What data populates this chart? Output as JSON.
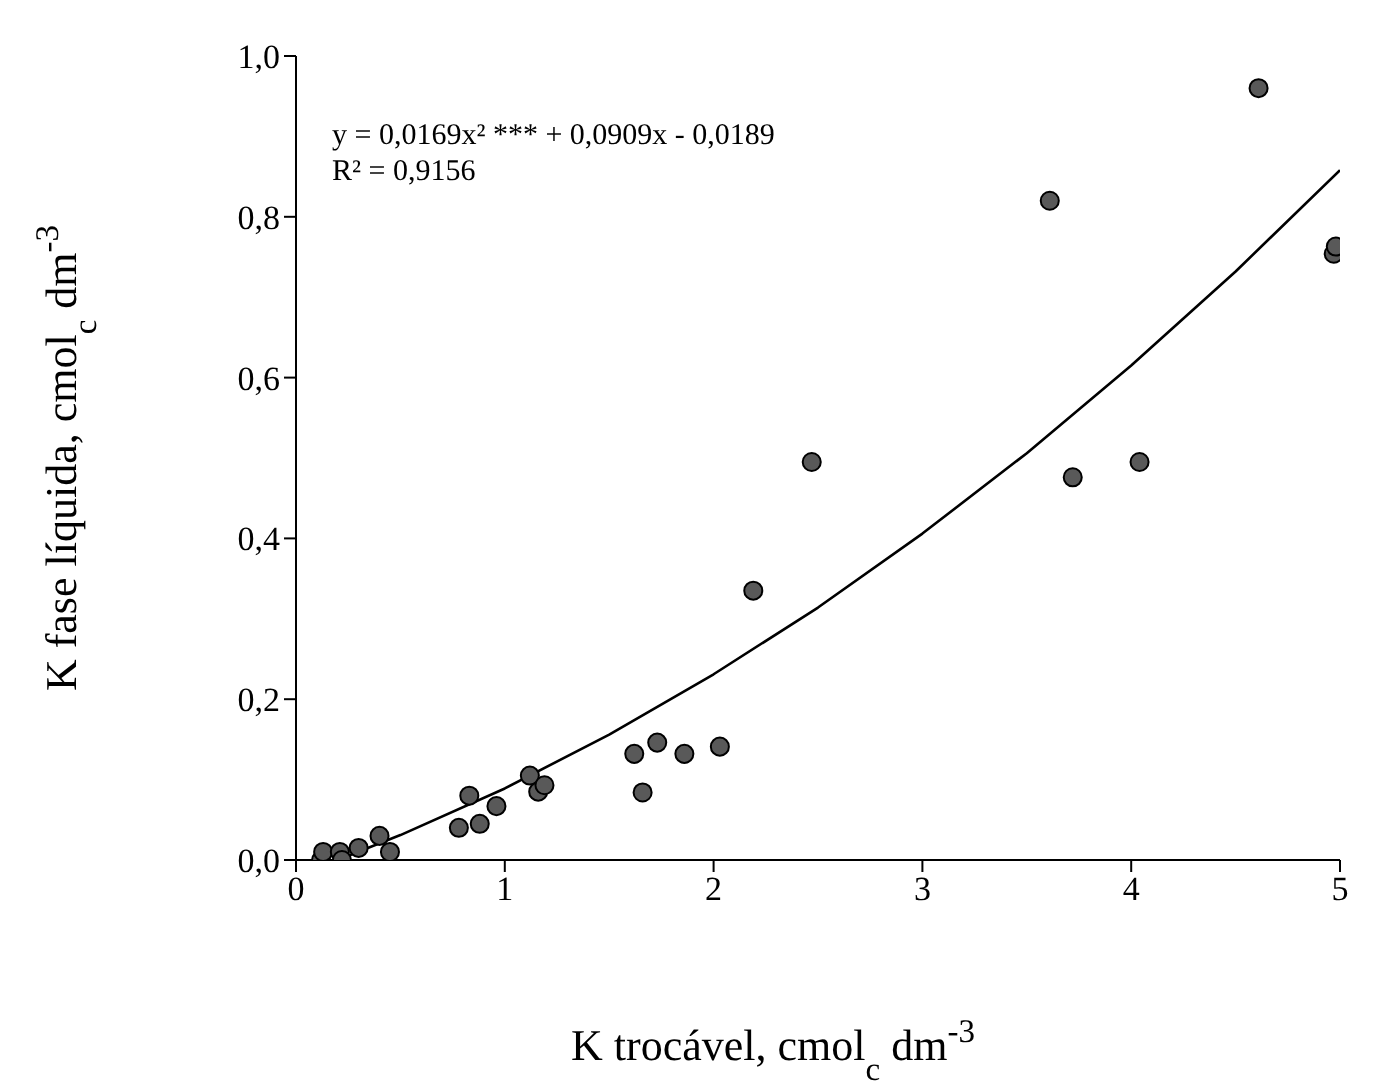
{
  "chart_data": {
    "type": "scatter",
    "xlabel": "K trocável, cmol$_{c}$ dm$^{-3}$",
    "ylabel": "K fase líquida, cmol$_{c}$ dm$^{-3}$",
    "annotations": [
      "y = 0,0169x² *** + 0,0909x - 0,0189",
      "R² = 0,9156"
    ],
    "xlim": [
      0,
      5
    ],
    "xticks": [
      0,
      1,
      2,
      3,
      4,
      5
    ],
    "ylim": [
      0,
      1
    ],
    "yticks": [
      {
        "value": 0,
        "label": "0,0"
      },
      {
        "value": 0.2,
        "label": "0,2"
      },
      {
        "value": 0.4,
        "label": "0,4"
      },
      {
        "value": 0.6,
        "label": "0,6"
      },
      {
        "value": 0.8,
        "label": "0,8"
      },
      {
        "value": 1,
        "label": "1,0"
      }
    ],
    "grid": false,
    "series": [
      {
        "marker": "circle",
        "color": "#595959",
        "x": [
          0.12,
          0.13,
          0.21,
          0.22,
          0.3,
          0.4,
          0.45,
          0.78,
          0.83,
          0.88,
          0.96,
          1.12,
          1.16,
          1.19,
          1.62,
          1.66,
          1.73,
          1.86,
          2.03,
          2.19,
          2.47,
          3.61,
          3.72,
          4.04,
          4.61,
          4.97,
          4.98
        ],
        "values": [
          0.0,
          0.01,
          0.01,
          0.0,
          0.015,
          0.03,
          0.01,
          0.04,
          0.08,
          0.045,
          0.067,
          0.105,
          0.085,
          0.093,
          0.132,
          0.084,
          0.146,
          0.132,
          0.141,
          0.335,
          0.495,
          0.82,
          0.476,
          0.495,
          0.96,
          0.754,
          0.763
        ]
      },
      {
        "type": "line",
        "color": "#000000",
        "marker": "none",
        "line_style": "solid",
        "x": [
          0.2,
          0.5,
          1,
          1.5,
          2,
          2.5,
          3,
          3.5,
          4,
          4.5,
          5
        ],
        "values": [
          0.0,
          0.031,
          0.089,
          0.156,
          0.231,
          0.314,
          0.406,
          0.506,
          0.615,
          0.732,
          0.858
        ]
      }
    ]
  }
}
